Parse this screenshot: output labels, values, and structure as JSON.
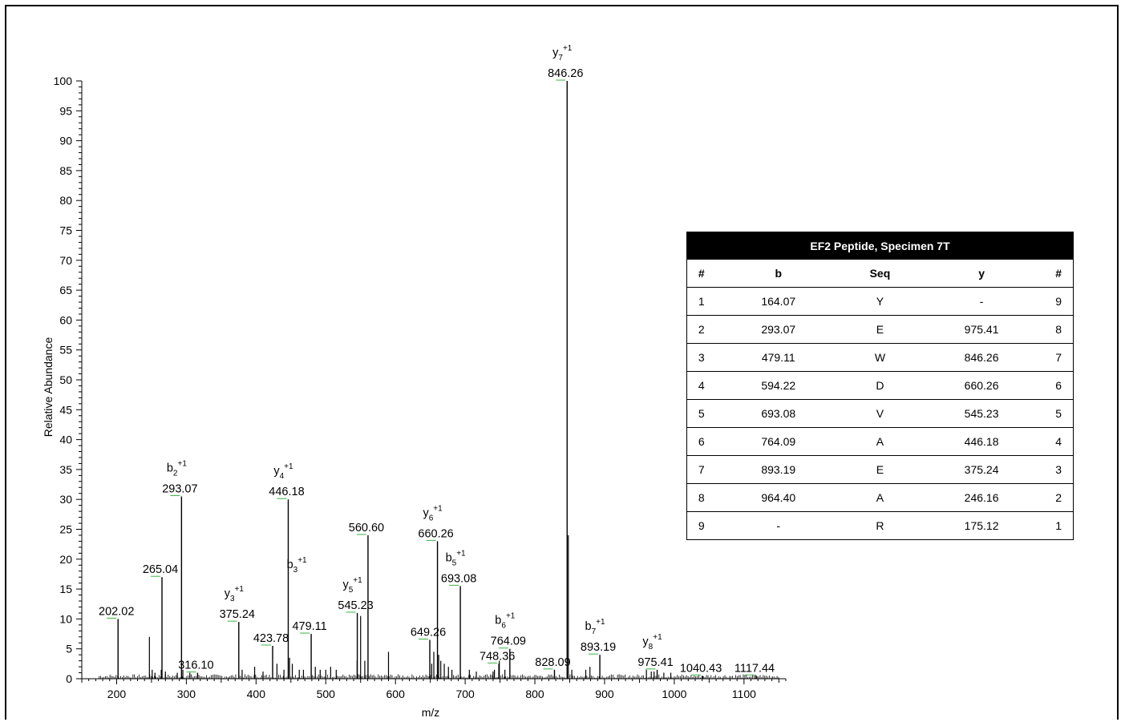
{
  "chart_data": {
    "type": "bar",
    "xlabel": "m/z",
    "ylabel": "Relative Abundance",
    "xlim": [
      150,
      1160
    ],
    "ylim": [
      0,
      100
    ],
    "x_ticks": [
      200,
      300,
      400,
      500,
      600,
      700,
      800,
      900,
      1000,
      1100
    ],
    "y_ticks": [
      0,
      5,
      10,
      15,
      20,
      25,
      30,
      35,
      40,
      45,
      50,
      55,
      60,
      65,
      70,
      75,
      80,
      85,
      90,
      95,
      100
    ],
    "labeled_peaks": [
      {
        "mz": 202.02,
        "intensity": 10,
        "label": "202.02",
        "ion": "",
        "charge": ""
      },
      {
        "mz": 265.04,
        "intensity": 17,
        "label": "265.04",
        "ion": "",
        "charge": ""
      },
      {
        "mz": 293.07,
        "intensity": 30.5,
        "label": "293.07",
        "ion": "b2",
        "ion_letter": "b",
        "ion_sub": "2",
        "charge": "+1"
      },
      {
        "mz": 316.1,
        "intensity": 1,
        "label": "316.10",
        "ion": "",
        "charge": ""
      },
      {
        "mz": 375.24,
        "intensity": 9.5,
        "label": "375.24",
        "ion": "y3",
        "ion_letter": "y",
        "ion_sub": "3",
        "charge": "+1"
      },
      {
        "mz": 423.78,
        "intensity": 5.5,
        "label": "423.78",
        "ion": "",
        "charge": ""
      },
      {
        "mz": 446.18,
        "intensity": 30,
        "label": "446.18",
        "ion": "y4",
        "ion_letter": "y",
        "ion_sub": "4",
        "charge": "+1"
      },
      {
        "mz": 479.11,
        "intensity": 7.5,
        "label": "479.11",
        "ion": "b3",
        "ion_letter": "b",
        "ion_sub": "3",
        "charge": "+1",
        "ion_only_near": 18.5
      },
      {
        "mz": 545.23,
        "intensity": 11,
        "label": "545.23",
        "ion": "y5",
        "ion_letter": "y",
        "ion_sub": "5",
        "charge": "+1"
      },
      {
        "mz": 560.6,
        "intensity": 24,
        "label": "560.60",
        "ion": "",
        "charge": ""
      },
      {
        "mz": 649.26,
        "intensity": 6.5,
        "label": "649.26",
        "ion": "",
        "charge": ""
      },
      {
        "mz": 660.26,
        "intensity": 23,
        "label": "660.26",
        "ion": "y6",
        "ion_letter": "y",
        "ion_sub": "6",
        "charge": "+1"
      },
      {
        "mz": 693.08,
        "intensity": 15.5,
        "label": "693.08",
        "ion": "b5",
        "ion_letter": "b",
        "ion_sub": "5",
        "charge": "+1"
      },
      {
        "mz": 748.36,
        "intensity": 2.5,
        "label": "748.36",
        "ion": "",
        "charge": ""
      },
      {
        "mz": 764.09,
        "intensity": 5,
        "label": "764.09",
        "ion": "b6",
        "ion_letter": "b",
        "ion_sub": "6",
        "charge": "+1"
      },
      {
        "mz": 828.09,
        "intensity": 1.5,
        "label": "828.09",
        "ion": "",
        "charge": ""
      },
      {
        "mz": 846.26,
        "intensity": 100,
        "label": "846.26",
        "ion": "y7",
        "ion_letter": "y",
        "ion_sub": "7",
        "charge": "+1"
      },
      {
        "mz": 893.19,
        "intensity": 4,
        "label": "893.19",
        "ion": "b7",
        "ion_letter": "b",
        "ion_sub": "7",
        "charge": "+1"
      },
      {
        "mz": 975.41,
        "intensity": 1.5,
        "label": "975.41",
        "ion": "y8",
        "ion_letter": "y",
        "ion_sub": "8",
        "charge": "+1"
      },
      {
        "mz": 1040.43,
        "intensity": 0.5,
        "label": "1040.43",
        "ion": "",
        "charge": ""
      },
      {
        "mz": 1117.44,
        "intensity": 0.5,
        "label": "1117.44",
        "ion": "",
        "charge": ""
      }
    ],
    "unlabeled_peaks": [
      [
        247,
        7
      ],
      [
        251,
        1.5
      ],
      [
        255,
        1
      ],
      [
        264,
        1.5
      ],
      [
        270,
        1.2
      ],
      [
        287,
        1
      ],
      [
        295,
        1.5
      ],
      [
        305,
        1
      ],
      [
        380,
        1.5
      ],
      [
        398,
        2
      ],
      [
        410,
        1.2
      ],
      [
        430,
        2.5
      ],
      [
        440,
        1.5
      ],
      [
        448,
        3.5
      ],
      [
        452,
        2.5
      ],
      [
        462,
        1.5
      ],
      [
        468,
        1.5
      ],
      [
        485,
        2
      ],
      [
        492,
        1.5
      ],
      [
        500,
        1.5
      ],
      [
        507,
        2
      ],
      [
        515,
        1.5
      ],
      [
        545,
        3
      ],
      [
        550,
        10.5
      ],
      [
        556,
        3
      ],
      [
        590,
        4.5
      ],
      [
        652,
        2.5
      ],
      [
        655,
        4.5
      ],
      [
        662,
        4
      ],
      [
        665,
        3
      ],
      [
        670,
        2.5
      ],
      [
        676,
        2
      ],
      [
        681,
        1.5
      ],
      [
        706,
        1.5
      ],
      [
        716,
        1.2
      ],
      [
        740,
        1.2
      ],
      [
        742,
        1.5
      ],
      [
        749,
        3
      ],
      [
        757,
        1.5
      ],
      [
        848,
        24
      ],
      [
        853,
        1.5
      ],
      [
        873,
        1.5
      ],
      [
        879,
        2
      ],
      [
        960,
        1.5
      ],
      [
        967,
        1.2
      ],
      [
        971,
        1.2
      ],
      [
        985,
        1
      ],
      [
        995,
        1
      ]
    ]
  },
  "table": {
    "title": "EF2 Peptide, Specimen 7T",
    "headers": [
      "#",
      "b",
      "Seq",
      "y",
      "#"
    ],
    "rows": [
      [
        "1",
        "164.07",
        "Y",
        "-",
        "9"
      ],
      [
        "2",
        "293.07",
        "E",
        "975.41",
        "8"
      ],
      [
        "3",
        "479.11",
        "W",
        "846.26",
        "7"
      ],
      [
        "4",
        "594.22",
        "D",
        "660.26",
        "6"
      ],
      [
        "5",
        "693.08",
        "V",
        "545.23",
        "5"
      ],
      [
        "6",
        "764.09",
        "A",
        "446.18",
        "4"
      ],
      [
        "7",
        "893.19",
        "E",
        "375.24",
        "3"
      ],
      [
        "8",
        "964.40",
        "A",
        "246.16",
        "2"
      ],
      [
        "9",
        "-",
        "R",
        "175.12",
        "1"
      ]
    ]
  }
}
